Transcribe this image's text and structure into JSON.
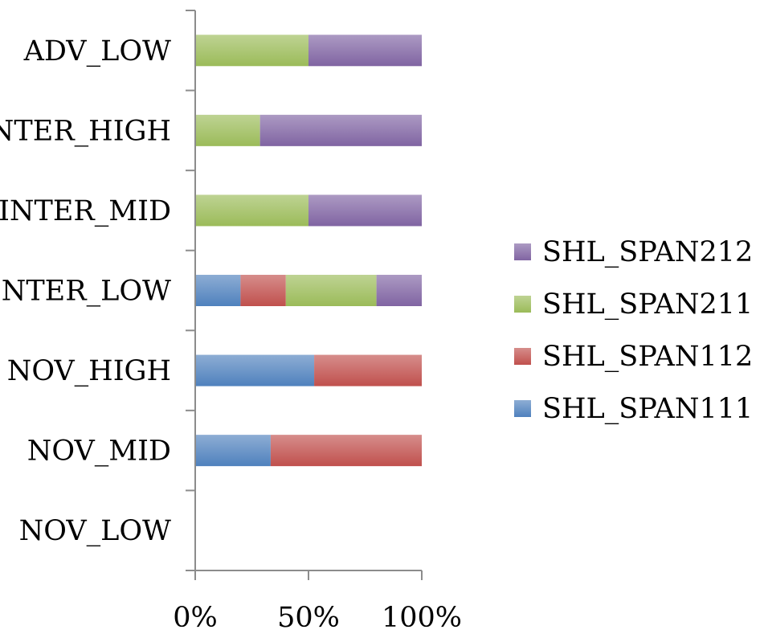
{
  "chart_data": {
    "type": "bar",
    "orientation": "horizontal",
    "stacked": "percent",
    "title": "",
    "xlabel": "",
    "ylabel": "",
    "xlim": [
      0,
      100
    ],
    "x_ticks": [
      "0%",
      "50%",
      "100%"
    ],
    "grid": false,
    "legend_position": "right",
    "categories": [
      "NOV_LOW",
      "NOV_MID",
      "NOV_HIGH",
      "INTER_LOW",
      "INTER_MID",
      "INTER_HIGH",
      "ADV_LOW"
    ],
    "series": [
      {
        "name": "SHL_SPAN111",
        "color": "#4f81bd",
        "values": [
          0,
          33.3,
          52.5,
          20,
          0,
          0,
          0
        ]
      },
      {
        "name": "SHL_SPAN112",
        "color": "#c0504d",
        "values": [
          0,
          66.7,
          47.5,
          20,
          0,
          0,
          0
        ]
      },
      {
        "name": "SHL_SPAN211",
        "color": "#9bbb59",
        "values": [
          0,
          0,
          0,
          40,
          50,
          28.6,
          50
        ]
      },
      {
        "name": "SHL_SPAN212",
        "color": "#8064a2",
        "values": [
          0,
          0,
          0,
          20,
          50,
          71.4,
          50
        ]
      }
    ],
    "legend_order": [
      "SHL_SPAN212",
      "SHL_SPAN211",
      "SHL_SPAN112",
      "SHL_SPAN111"
    ]
  }
}
